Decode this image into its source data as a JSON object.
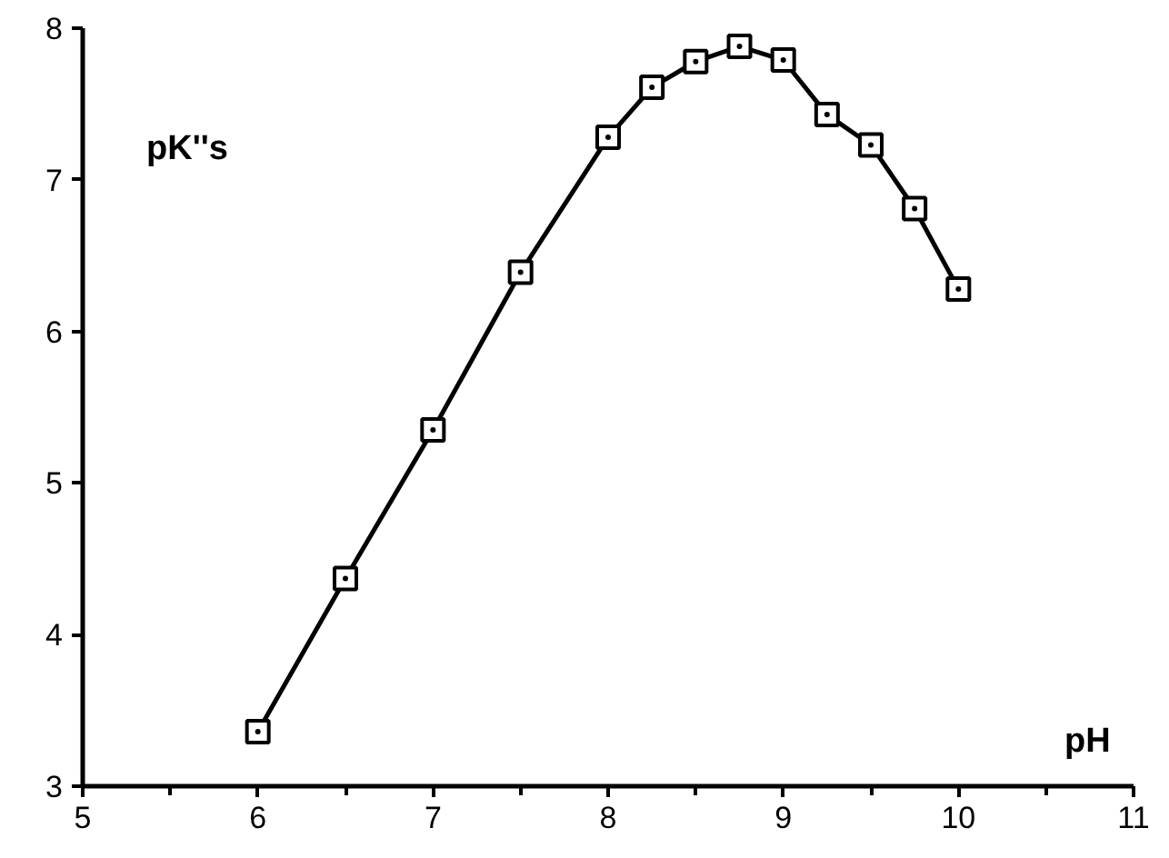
{
  "chart_data": {
    "type": "line",
    "xlabel": "pH",
    "ylabel": "pK''s",
    "x": [
      6,
      6.5,
      7,
      7.5,
      8,
      8.25,
      8.5,
      8.75,
      9,
      9.25,
      9.5,
      9.75,
      10
    ],
    "series": [
      {
        "color": "#000000",
        "values": [
          3.36,
          4.37,
          5.35,
          6.39,
          7.28,
          7.61,
          7.78,
          7.88,
          7.79,
          7.43,
          7.23,
          6.81,
          6.28
        ]
      }
    ],
    "xlim": [
      5,
      11
    ],
    "ylim": [
      3,
      8
    ],
    "xticks": [
      5,
      6,
      7,
      8,
      9,
      10,
      11
    ],
    "yticks": [
      3,
      4,
      5,
      6,
      7,
      8
    ],
    "marker": "square",
    "line_style": "solid",
    "grid": false
  }
}
